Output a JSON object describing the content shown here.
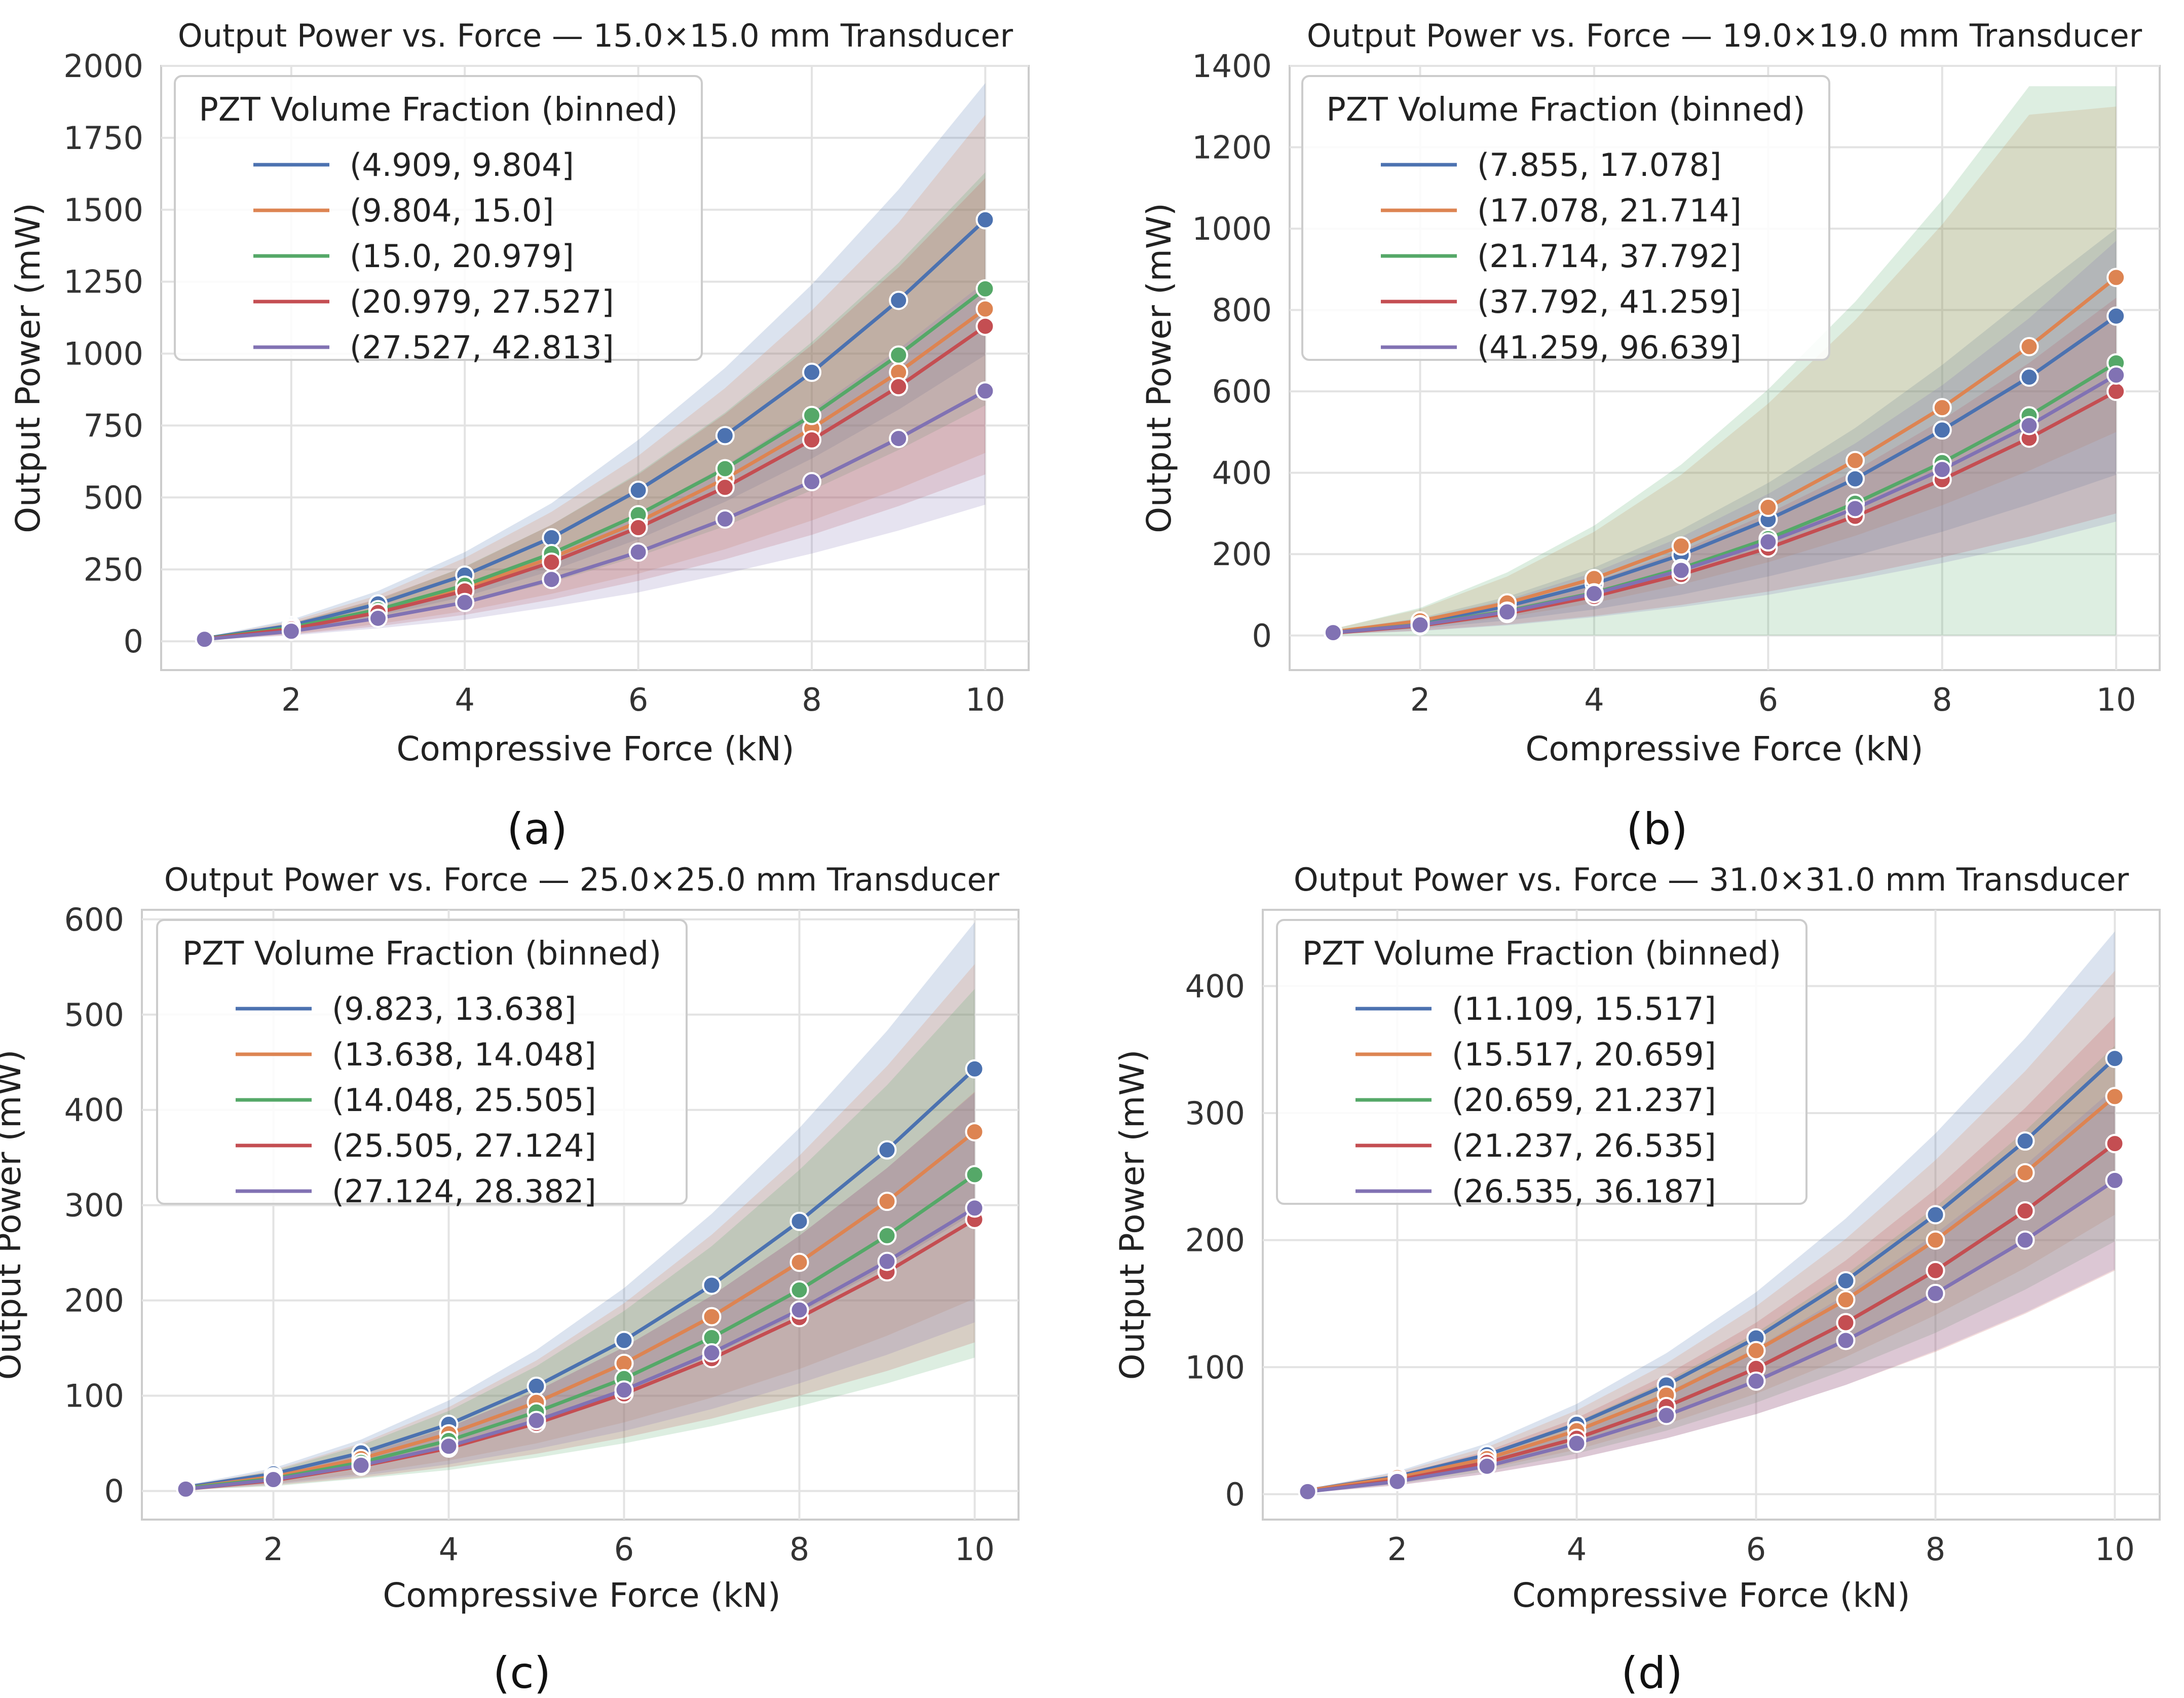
{
  "chart_data": [
    {
      "type": "line",
      "panel_label": "(a)",
      "title": "Output Power vs. Force — 15.0×15.0 mm Transducer",
      "xlabel": "Compressive Force (kN)",
      "ylabel": "Output Power (mW)",
      "xlim": [
        0.5,
        10.5
      ],
      "ylim": [
        -100,
        2000
      ],
      "x_ticks": [
        2,
        4,
        6,
        8,
        10
      ],
      "y_ticks": [
        0,
        250,
        500,
        750,
        1000,
        1250,
        1500,
        1750,
        2000
      ],
      "legend_title": "PZT Volume Fraction (binned)",
      "legend_position": "top-left",
      "grid": true,
      "x": [
        1,
        2,
        3,
        4,
        5,
        6,
        7,
        8,
        9,
        10
      ],
      "series": [
        {
          "name": "(4.909, 9.804]",
          "color": "#4c72b0",
          "values": [
            10,
            55,
            130,
            230,
            360,
            525,
            715,
            935,
            1185,
            1465
          ],
          "lower": [
            7,
            38,
            88,
            155,
            245,
            355,
            485,
            635,
            805,
            995
          ],
          "upper": [
            14,
            75,
            175,
            310,
            480,
            700,
            950,
            1240,
            1570,
            1940
          ]
        },
        {
          "name": "(9.804, 15.0]",
          "color": "#dd8452",
          "values": [
            9,
            45,
            105,
            185,
            290,
            415,
            565,
            740,
            935,
            1155
          ],
          "lower": [
            5,
            25,
            60,
            105,
            165,
            235,
            320,
            420,
            530,
            655
          ],
          "upper": [
            13,
            70,
            160,
            290,
            450,
            645,
            880,
            1150,
            1455,
            1830
          ]
        },
        {
          "name": "(15.0, 20.979]",
          "color": "#55a868",
          "values": [
            9,
            48,
            110,
            195,
            305,
            440,
            600,
            785,
            995,
            1225
          ],
          "lower": [
            6,
            33,
            75,
            130,
            205,
            295,
            400,
            525,
            665,
            820
          ],
          "upper": [
            12,
            63,
            145,
            260,
            405,
            585,
            795,
            1040,
            1315,
            1630
          ]
        },
        {
          "name": "(20.979, 27.527]",
          "color": "#c44e52",
          "values": [
            8,
            43,
            100,
            175,
            275,
            395,
            535,
            700,
            885,
            1095
          ],
          "lower": [
            4,
            23,
            52,
            92,
            145,
            210,
            285,
            370,
            470,
            580
          ],
          "upper": [
            12,
            63,
            148,
            258,
            405,
            580,
            790,
            1030,
            1300,
            1610
          ]
        },
        {
          "name": "(27.527, 42.813]",
          "color": "#8172b3",
          "values": [
            7,
            35,
            80,
            135,
            215,
            310,
            425,
            555,
            705,
            870
          ],
          "lower": [
            4,
            20,
            45,
            75,
            120,
            170,
            235,
            305,
            385,
            475
          ],
          "upper": [
            10,
            50,
            115,
            195,
            310,
            445,
            610,
            800,
            1015,
            1250
          ]
        }
      ]
    },
    {
      "type": "line",
      "panel_label": "(b)",
      "title": "Output Power vs. Force — 19.0×19.0 mm Transducer",
      "xlabel": "Compressive Force (kN)",
      "ylabel": "Output Power (mW)",
      "xlim": [
        0.5,
        10.5
      ],
      "ylim": [
        -85,
        1400
      ],
      "x_ticks": [
        2,
        4,
        6,
        8,
        10
      ],
      "y_ticks": [
        0,
        200,
        400,
        600,
        800,
        1000,
        1200,
        1400
      ],
      "legend_title": "PZT Volume Fraction (binned)",
      "legend_position": "top-left",
      "grid": true,
      "x": [
        1,
        2,
        3,
        4,
        5,
        6,
        7,
        8,
        9,
        10
      ],
      "series": [
        {
          "name": "(7.855, 17.078]",
          "color": "#4c72b0",
          "values": [
            8,
            32,
            72,
            127,
            198,
            285,
            385,
            505,
            635,
            785
          ],
          "lower": [
            4,
            17,
            37,
            64,
            100,
            145,
            196,
            255,
            322,
            395
          ],
          "upper": [
            12,
            43,
            95,
            167,
            260,
            375,
            510,
            665,
            835,
            1000
          ]
        },
        {
          "name": "(17.078, 21.714]",
          "color": "#dd8452",
          "values": [
            9,
            36,
            80,
            140,
            220,
            315,
            430,
            560,
            710,
            880
          ],
          "lower": [
            5,
            20,
            45,
            80,
            125,
            180,
            245,
            320,
            405,
            500
          ],
          "upper": [
            16,
            65,
            145,
            255,
            395,
            570,
            775,
            1010,
            1280,
            1300
          ]
        },
        {
          "name": "(21.714, 37.792]",
          "color": "#55a868",
          "values": [
            7,
            27,
            60,
            105,
            165,
            238,
            325,
            425,
            540,
            670
          ],
          "lower": [
            0,
            0,
            0,
            0,
            0,
            0,
            0,
            0,
            0,
            0
          ],
          "upper": [
            16,
            68,
            155,
            270,
            420,
            605,
            820,
            1070,
            1350,
            1350
          ]
        },
        {
          "name": "(37.792, 41.259]",
          "color": "#c44e52",
          "values": [
            6,
            24,
            54,
            96,
            150,
            215,
            293,
            383,
            485,
            600
          ],
          "lower": [
            3,
            12,
            27,
            48,
            75,
            108,
            147,
            192,
            243,
            300
          ],
          "upper": [
            9,
            34,
            75,
            133,
            208,
            300,
            405,
            530,
            670,
            830
          ]
        },
        {
          "name": "(41.259, 96.639]",
          "color": "#8172b3",
          "values": [
            7,
            26,
            58,
            103,
            160,
            230,
            312,
            408,
            516,
            640
          ],
          "lower": [
            3,
            11,
            25,
            45,
            70,
            100,
            137,
            178,
            225,
            280
          ],
          "upper": [
            11,
            40,
            88,
            155,
            242,
            348,
            472,
            615,
            780,
            970
          ]
        }
      ]
    },
    {
      "type": "line",
      "panel_label": "(c)",
      "title": "Output Power vs. Force — 25.0×25.0 mm Transducer",
      "xlabel": "Compressive Force (kN)",
      "ylabel": "Output Power (mW)",
      "xlim": [
        0.5,
        10.5
      ],
      "ylim": [
        -30,
        610
      ],
      "x_ticks": [
        2,
        4,
        6,
        8,
        10
      ],
      "y_ticks": [
        0,
        100,
        200,
        300,
        400,
        500,
        600
      ],
      "legend_title": "PZT Volume Fraction (binned)",
      "legend_position": "top-left",
      "grid": true,
      "x": [
        1,
        2,
        3,
        4,
        5,
        6,
        7,
        8,
        9,
        10
      ],
      "series": [
        {
          "name": "(9.823, 13.638]",
          "color": "#4c72b0",
          "values": [
            4,
            18,
            40,
            70,
            110,
            158,
            216,
            283,
            358,
            443
          ],
          "lower": [
            3,
            12,
            26,
            46,
            72,
            104,
            142,
            186,
            236,
            292
          ],
          "upper": [
            6,
            24,
            54,
            95,
            148,
            213,
            291,
            381,
            483,
            597
          ]
        },
        {
          "name": "(13.638, 14.048]",
          "color": "#dd8452",
          "values": [
            3,
            15,
            34,
            60,
            93,
            134,
            183,
            240,
            304,
            377
          ],
          "lower": [
            2,
            8,
            18,
            32,
            50,
            72,
            98,
            128,
            163,
            202
          ],
          "upper": [
            5,
            22,
            50,
            88,
            137,
            197,
            269,
            352,
            446,
            553
          ]
        },
        {
          "name": "(14.048, 25.505]",
          "color": "#55a868",
          "values": [
            3,
            13,
            30,
            53,
            83,
            118,
            161,
            211,
            268,
            332
          ],
          "lower": [
            1,
            5,
            13,
            22,
            35,
            50,
            68,
            89,
            113,
            140
          ],
          "upper": [
            5,
            21,
            48,
            84,
            131,
            189,
            257,
            337,
            426,
            527
          ]
        },
        {
          "name": "(25.505, 27.124]",
          "color": "#c44e52",
          "values": [
            2,
            11,
            26,
            45,
            71,
            102,
            139,
            182,
            230,
            285
          ],
          "lower": [
            1,
            6,
            14,
            25,
            39,
            56,
            76,
            100,
            126,
            156
          ],
          "upper": [
            4,
            17,
            38,
            67,
            105,
            151,
            205,
            268,
            339,
            419
          ]
        },
        {
          "name": "(27.124, 28.382]",
          "color": "#8172b3",
          "values": [
            2,
            12,
            27,
            47,
            74,
            106,
            145,
            190,
            241,
            297
          ],
          "lower": [
            1,
            7,
            16,
            28,
            44,
            63,
            86,
            113,
            143,
            177
          ],
          "upper": [
            4,
            17,
            38,
            67,
            105,
            151,
            205,
            268,
            339,
            418
          ]
        }
      ]
    },
    {
      "type": "line",
      "panel_label": "(d)",
      "title": "Output Power vs. Force — 31.0×31.0 mm Transducer",
      "xlabel": "Compressive Force (kN)",
      "ylabel": "Output Power (mW)",
      "xlim": [
        0.5,
        10.5
      ],
      "ylim": [
        -20,
        460
      ],
      "x_ticks": [
        2,
        4,
        6,
        8,
        10
      ],
      "y_ticks": [
        0,
        100,
        200,
        300,
        400
      ],
      "legend_title": "PZT Volume Fraction (binned)",
      "legend_position": "top-left",
      "grid": true,
      "x": [
        1,
        2,
        3,
        4,
        5,
        6,
        7,
        8,
        9,
        10
      ],
      "series": [
        {
          "name": "(11.109, 15.517]",
          "color": "#4c72b0",
          "values": [
            3,
            14,
            31,
            55,
            86,
            123,
            168,
            220,
            278,
            343
          ],
          "lower": [
            2,
            10,
            22,
            40,
            62,
            89,
            121,
            158,
            200,
            247
          ],
          "upper": [
            4,
            18,
            40,
            71,
            111,
            159,
            217,
            284,
            359,
            443
          ]
        },
        {
          "name": "(15.517, 20.659]",
          "color": "#dd8452",
          "values": [
            3,
            13,
            28,
            50,
            78,
            113,
            153,
            200,
            253,
            313
          ],
          "lower": [
            2,
            9,
            20,
            35,
            55,
            79,
            108,
            141,
            178,
            220
          ],
          "upper": [
            4,
            17,
            37,
            66,
            103,
            148,
            201,
            263,
            333,
            412
          ]
        },
        {
          "name": "(20.659, 21.237]",
          "color": "#55a868",
          "values": [
            2,
            11,
            25,
            44,
            69,
            99,
            135,
            176,
            223,
            276
          ],
          "lower": [
            2,
            8,
            18,
            32,
            50,
            72,
            98,
            127,
            161,
            199
          ],
          "upper": [
            3,
            14,
            32,
            57,
            89,
            127,
            173,
            226,
            286,
            353
          ]
        },
        {
          "name": "(21.237, 26.535]",
          "color": "#c44e52",
          "values": [
            2,
            11,
            25,
            44,
            69,
            99,
            135,
            176,
            223,
            276
          ],
          "lower": [
            1,
            7,
            16,
            28,
            44,
            63,
            86,
            112,
            142,
            176
          ],
          "upper": [
            3,
            15,
            34,
            60,
            94,
            135,
            184,
            240,
            304,
            376
          ]
        },
        {
          "name": "(26.535, 36.187]",
          "color": "#8172b3",
          "values": [
            2,
            10,
            22,
            40,
            62,
            89,
            121,
            158,
            200,
            247
          ],
          "lower": [
            1,
            7,
            16,
            28,
            44,
            63,
            86,
            113,
            143,
            177
          ],
          "upper": [
            3,
            13,
            29,
            51,
            80,
            115,
            157,
            205,
            259,
            320
          ]
        }
      ]
    }
  ]
}
